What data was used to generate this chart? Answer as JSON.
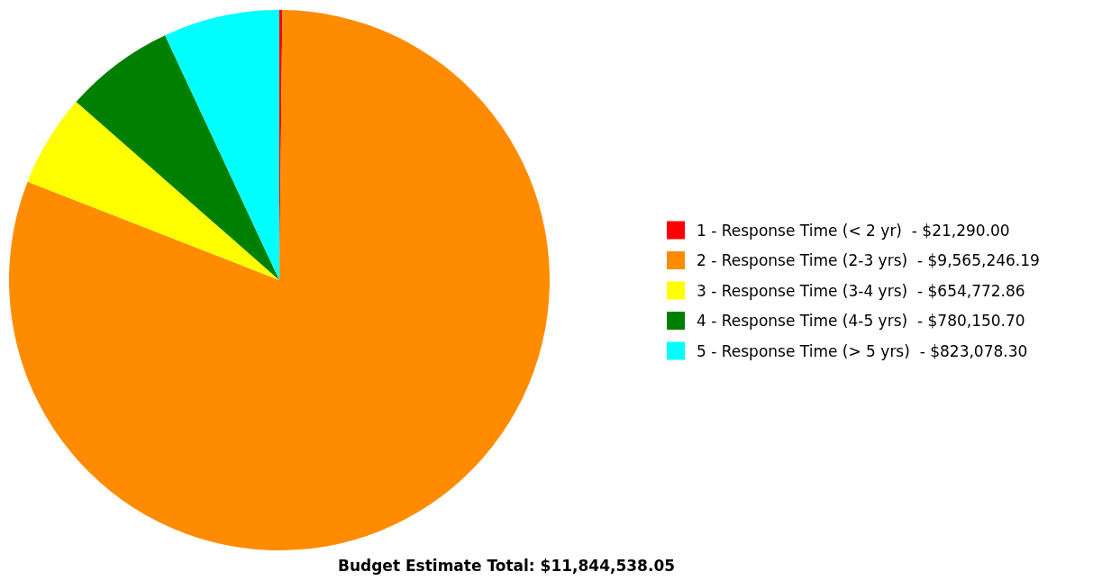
{
  "chart_data": {
    "type": "pie",
    "title": "Budget Estimate Total: $11,844,538.05",
    "categories": [
      "1 - Response Time (< 2 yr)",
      "2 - Response Time (2-3 yrs)",
      "3 - Response Time (3-4 yrs)",
      "4 - Response Time (4-5 yrs)",
      "5 - Response Time (> 5 yrs)"
    ],
    "values": [
      21290.0,
      9565246.19,
      654772.86,
      780150.7,
      823078.3
    ],
    "value_labels": [
      "$21,290.00",
      "$9,565,246.19",
      "$654,772.86",
      "$780,150.70",
      "$823,078.30"
    ],
    "colors": [
      "#ff0000",
      "#ff8c00",
      "#ffff00",
      "#008000",
      "#00ffff"
    ],
    "legend": "right"
  }
}
